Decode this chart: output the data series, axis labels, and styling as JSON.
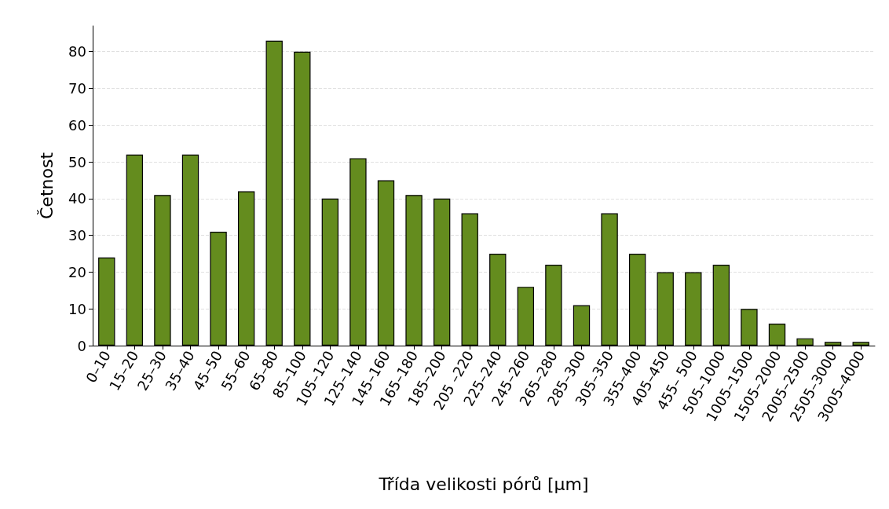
{
  "chart_data": {
    "type": "bar",
    "xlabel": "Třída velikosti pórů [µm]",
    "ylabel": "Četnost",
    "categories": [
      "0–10",
      "15–20",
      "25–30",
      "35–40",
      "45–50",
      "55–60",
      "65–80",
      "85–100",
      "105–120",
      "125–140",
      "145–160",
      "165–180",
      "185–200",
      "205 –220",
      "225–240",
      "245–260",
      "265–280",
      "285–300",
      "305–350",
      "355–400",
      "405–450",
      "455– 500",
      "505–1000",
      "1005–1500",
      "1505–2000",
      "2005–2500",
      "2505–3000",
      "3005–4000"
    ],
    "values": [
      24,
      52,
      41,
      52,
      31,
      42,
      83,
      80,
      40,
      51,
      45,
      41,
      40,
      36,
      25,
      16,
      22,
      11,
      36,
      25,
      20,
      20,
      22,
      10,
      6,
      2,
      1,
      1
    ],
    "color": "#648c1e",
    "ylim": [
      0,
      87
    ],
    "yticks": [
      0,
      10,
      20,
      30,
      40,
      50,
      60,
      70,
      80
    ],
    "grid": "y"
  }
}
